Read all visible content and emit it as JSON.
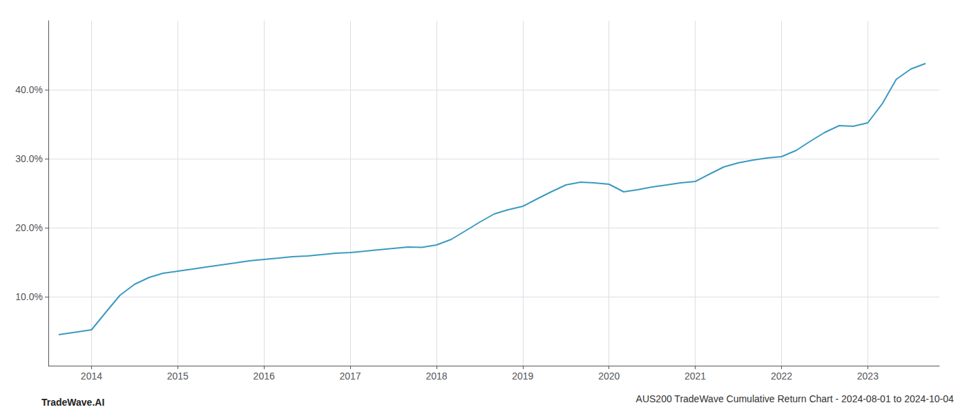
{
  "chart_data": {
    "type": "line",
    "title": "AUS200 TradeWave Cumulative Return Chart - 2024-08-01 to 2024-10-04",
    "annotations": [
      "TradeWave.AI"
    ],
    "color": "#3a9abf",
    "grid": true,
    "x": [
      2013.62,
      2014.0,
      2014.17,
      2014.33,
      2014.5,
      2014.67,
      2014.83,
      2015.0,
      2015.17,
      2015.33,
      2015.5,
      2015.67,
      2015.83,
      2016.0,
      2016.17,
      2016.33,
      2016.5,
      2016.67,
      2016.83,
      2017.0,
      2017.17,
      2017.33,
      2017.5,
      2017.67,
      2017.83,
      2018.0,
      2018.17,
      2018.33,
      2018.5,
      2018.67,
      2018.83,
      2019.0,
      2019.17,
      2019.33,
      2019.5,
      2019.67,
      2019.83,
      2020.0,
      2020.17,
      2020.33,
      2020.5,
      2020.67,
      2020.83,
      2021.0,
      2021.17,
      2021.33,
      2021.5,
      2021.67,
      2021.83,
      2022.0,
      2022.17,
      2022.33,
      2022.5,
      2022.67,
      2022.83,
      2023.0,
      2023.17,
      2023.33,
      2023.5,
      2023.67
    ],
    "values": [
      4.5,
      5.2,
      7.8,
      10.2,
      11.8,
      12.8,
      13.4,
      13.7,
      14.0,
      14.3,
      14.6,
      14.9,
      15.2,
      15.4,
      15.6,
      15.8,
      15.9,
      16.1,
      16.3,
      16.4,
      16.6,
      16.8,
      17.0,
      17.2,
      17.15,
      17.5,
      18.3,
      19.5,
      20.8,
      22.0,
      22.6,
      23.1,
      24.2,
      25.2,
      26.2,
      26.6,
      26.5,
      26.3,
      25.2,
      25.5,
      25.9,
      26.2,
      26.5,
      26.7,
      27.8,
      28.8,
      29.4,
      29.8,
      30.1,
      30.3,
      31.2,
      32.5,
      33.8,
      34.8,
      34.7,
      35.2,
      38.0,
      41.5,
      43.0,
      43.8
    ],
    "xlim": [
      2013.5,
      2023.83
    ],
    "ylim": [
      0,
      50
    ],
    "xticks": [
      2014,
      2015,
      2016,
      2017,
      2018,
      2019,
      2020,
      2021,
      2022,
      2023
    ],
    "yticks": [
      {
        "value": 10.0,
        "label": "10.0%"
      },
      {
        "value": 20.0,
        "label": "20.0%"
      },
      {
        "value": 30.0,
        "label": "30.0%"
      },
      {
        "value": 40.0,
        "label": "40.0%"
      }
    ]
  }
}
